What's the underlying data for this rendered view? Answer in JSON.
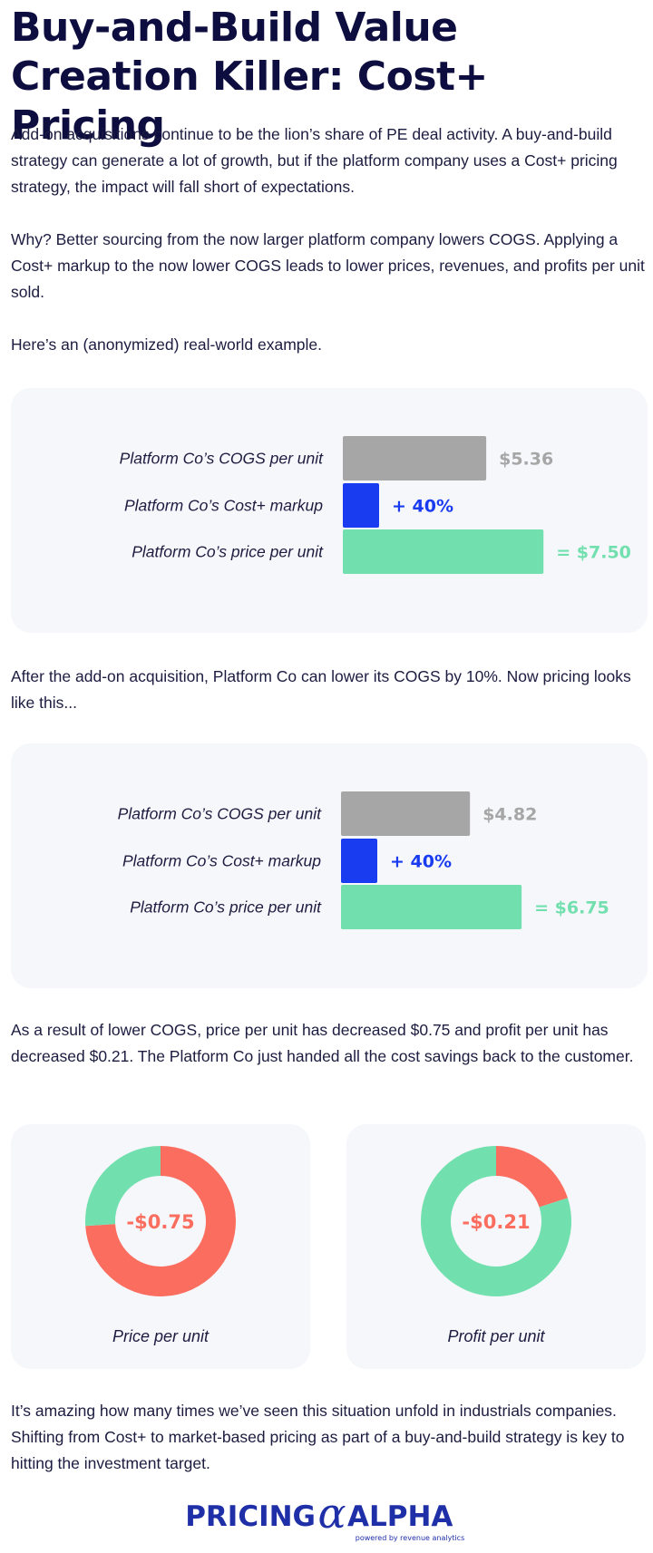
{
  "title": {
    "line1": "Buy-and-Build Value",
    "line2": "Creation Killer: Cost+ Pricing"
  },
  "paragraphs": {
    "p1": "Add-on acquisitions continue to be the lion’s share of PE deal activity. A buy-and-build strategy can generate a lot of growth, but if the platform company uses a Cost+ pricing strategy, the impact will fall short of expectations.",
    "p2": "Why? Better sourcing from the now larger platform company lowers COGS. Applying a Cost+ markup to the now lower COGS leads to lower prices, revenues, and profits per unit sold.",
    "p3": "Here’s an (anonymized) real-world example.",
    "p4": "After the add-on acquisition, Platform Co can lower its COGS by 10%. Now pricing looks like this...",
    "p5": "As a result of lower COGS, price per unit has decreased $0.75 and profit per unit has decreased $0.21. The Platform Co just handed all the cost savings back to the customer.",
    "p6": "It’s amazing how many times we’ve seen this situation unfold in industrials companies. Shifting from Cost+ to market-based pricing as part of a buy-and-build strategy is key to hitting the investment target."
  },
  "colors": {
    "cogs": "#a6a6a6",
    "markup": "#1a3cf0",
    "price": "#72e0ae",
    "decrease": "#fb6e5f",
    "navy": "#0d0d3f"
  },
  "chart_data": [
    {
      "type": "bar",
      "orientation": "horizontal",
      "categories": [
        "Platform Co’s COGS per unit",
        "Platform Co’s Cost+ markup",
        "Platform Co’s price per unit"
      ],
      "values": [
        5.36,
        0.4,
        7.5
      ],
      "units": [
        "$",
        "%",
        "$"
      ],
      "labels": [
        "$5.36",
        "+ 40%",
        "= $7.50"
      ],
      "colors": [
        "#a6a6a6",
        "#1a3cf0",
        "#72e0ae"
      ]
    },
    {
      "type": "bar",
      "orientation": "horizontal",
      "categories": [
        "Platform Co’s COGS per unit",
        "Platform Co’s Cost+ markup",
        "Platform Co’s price per unit"
      ],
      "values": [
        4.82,
        0.4,
        6.75
      ],
      "units": [
        "$",
        "%",
        "$"
      ],
      "labels": [
        "$4.82",
        "+ 40%",
        "= $6.75"
      ],
      "colors": [
        "#a6a6a6",
        "#1a3cf0",
        "#72e0ae"
      ]
    },
    {
      "type": "pie",
      "style": "donut",
      "center_label": "-$0.75",
      "caption": "Price per unit",
      "slices": [
        {
          "share": 0.74,
          "color": "#fb6e5f"
        },
        {
          "share": 0.26,
          "color": "#72e0ae"
        }
      ]
    },
    {
      "type": "pie",
      "style": "donut",
      "center_label": "-$0.21",
      "caption": "Profit per unit",
      "slices": [
        {
          "share": 0.2,
          "color": "#fb6e5f"
        },
        {
          "share": 0.8,
          "color": "#72e0ae"
        }
      ]
    }
  ],
  "logo": {
    "left_word": "PRICING",
    "symbol": "α",
    "right_word": "ALPHA",
    "tagline": "powered by revenue analytics"
  }
}
